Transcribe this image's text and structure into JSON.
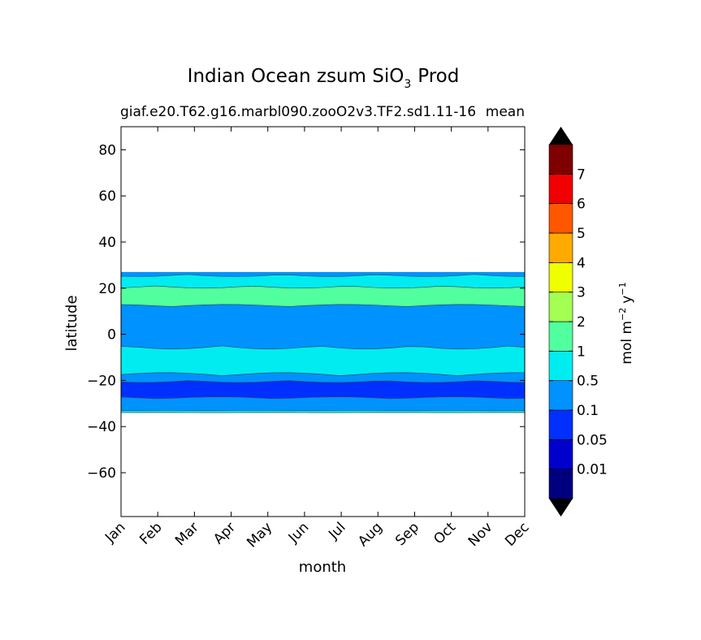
{
  "chart_data": {
    "type": "heatmap",
    "title": "Indian Ocean zsum SiO",
    "title_sub": "3",
    "title_tail": "Prod",
    "subtitle_left": "giaf.e20.T62.g16.marbl090.zooO2v3.TF2.sd1.11-16",
    "subtitle_right": "mean",
    "xlabel": "month",
    "ylabel": "latitude",
    "x_categories": [
      "Jan",
      "Feb",
      "Mar",
      "Apr",
      "May",
      "Jun",
      "Jul",
      "Aug",
      "Sep",
      "Oct",
      "Nov",
      "Dec"
    ],
    "yticks": [
      "80",
      "60",
      "40",
      "20",
      "0",
      "−20",
      "−40",
      "−60"
    ],
    "ytick_values": [
      80,
      60,
      40,
      20,
      0,
      -20,
      -40,
      -60
    ],
    "ylim": [
      -79,
      90
    ],
    "data_lat_range": [
      -34,
      27
    ],
    "colorbar": {
      "label_main": "mol m",
      "label_exp1": "−2",
      "label_mid": "y",
      "label_exp2": "−1",
      "levels": [
        "0.01",
        "0.05",
        "0.1",
        "0.5",
        "1",
        "2",
        "3",
        "4",
        "5",
        "6",
        "7"
      ],
      "colors": [
        "#00007f",
        "#0000cc",
        "#0030ff",
        "#0092ff",
        "#00ecf0",
        "#52ff9e",
        "#a3ff52",
        "#f0ff00",
        "#ffaa00",
        "#ff5700",
        "#f00000",
        "#7f0000"
      ],
      "under_color": "#000000",
      "over_color": "#000000"
    },
    "bands": [
      {
        "color": "#0092ff",
        "lat_range": [
          -34,
          27
        ]
      },
      {
        "color": "#00ecf0",
        "lat_range": [
          17,
          26
        ]
      },
      {
        "color": "#52ff9e",
        "lat_range": [
          12,
          21
        ]
      },
      {
        "color": "#00ecf0",
        "lat_range": [
          -18,
          -5
        ]
      },
      {
        "color": "#0030ff",
        "lat_range": [
          -28,
          -20
        ]
      },
      {
        "color": "#00ecf0",
        "lat_range": [
          -34,
          -33
        ]
      }
    ]
  }
}
